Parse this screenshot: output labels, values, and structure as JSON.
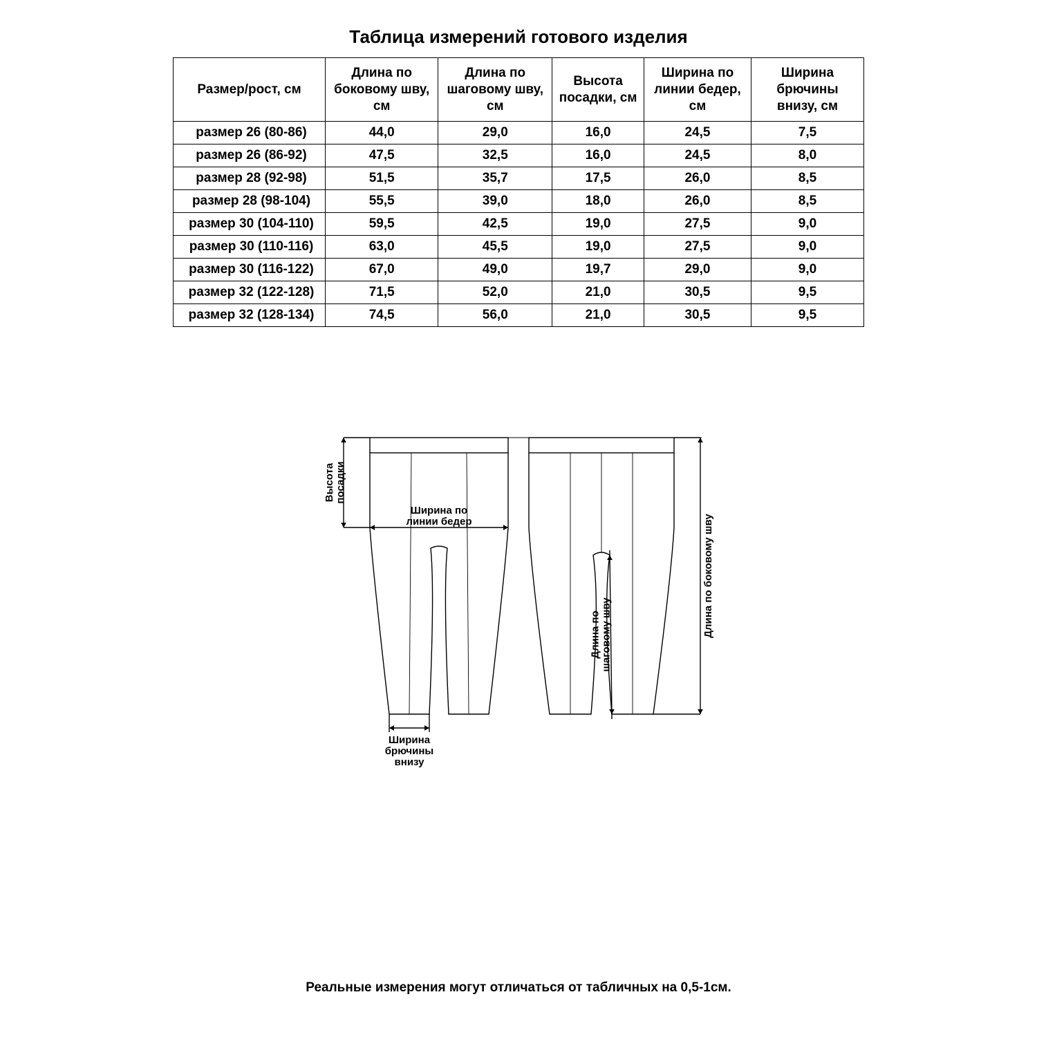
{
  "title": "Таблица измерений готового изделия",
  "footer": "Реальные измерения могут отличаться от табличных на 0,5-1см.",
  "table": {
    "columns": [
      "Размер/рост, см",
      "Длина по боковому шву, см",
      "Длина по шаговому шву, см",
      "Высота посадки, см",
      "Ширина по линии бедер, см",
      "Ширина брючины внизу, см"
    ],
    "rows": [
      [
        "размер 26 (80-86)",
        "44,0",
        "29,0",
        "16,0",
        "24,5",
        "7,5"
      ],
      [
        "размер 26 (86-92)",
        "47,5",
        "32,5",
        "16,0",
        "24,5",
        "8,0"
      ],
      [
        "размер 28 (92-98)",
        "51,5",
        "35,7",
        "17,5",
        "26,0",
        "8,5"
      ],
      [
        "размер 28 (98-104)",
        "55,5",
        "39,0",
        "18,0",
        "26,0",
        "8,5"
      ],
      [
        "размер 30 (104-110)",
        "59,5",
        "42,5",
        "19,0",
        "27,5",
        "9,0"
      ],
      [
        "размер 30 (110-116)",
        "63,0",
        "45,5",
        "19,0",
        "27,5",
        "9,0"
      ],
      [
        "размер 30 (116-122)",
        "67,0",
        "49,0",
        "19,7",
        "29,0",
        "9,0"
      ],
      [
        "размер 32 (122-128)",
        "71,5",
        "52,0",
        "21,0",
        "30,5",
        "9,5"
      ],
      [
        "размер 32 (128-134)",
        "74,5",
        "56,0",
        "21,0",
        "30,5",
        "9,5"
      ]
    ]
  },
  "diagram": {
    "labels": {
      "rise": [
        "Высота",
        "посадки"
      ],
      "hip": [
        "Ширина по",
        "линии бедер"
      ],
      "legwidth": [
        "Ширина",
        "брючины",
        "внизу"
      ],
      "inseam": [
        "Длина по",
        "шаговому шву"
      ],
      "outseam": "Длина по боковому шву"
    },
    "stroke": "#000000",
    "stroke_width": 1.4,
    "font_size_label": 15,
    "font_weight_label": "bold"
  }
}
